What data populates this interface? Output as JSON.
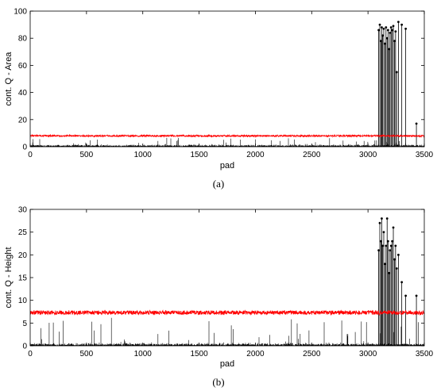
{
  "chart_data": [
    {
      "type": "scatter",
      "panel_label": "(a)",
      "xlabel": "pad",
      "ylabel": "cont. Q - Area",
      "xlim": [
        0,
        3500
      ],
      "ylim": [
        0,
        100
      ],
      "xticks": [
        0,
        500,
        1000,
        1500,
        2000,
        2500,
        3000,
        3500
      ],
      "yticks": [
        0,
        20,
        40,
        60,
        80,
        100
      ],
      "grid": false,
      "series": [
        {
          "kind": "stem",
          "color": "#000000",
          "baseline_level": 1.0,
          "baseline_noise": 1.2,
          "background_spikes_max": 6,
          "spikes": [
            [
              3095,
              86
            ],
            [
              3105,
              90
            ],
            [
              3115,
              78
            ],
            [
              3122,
              88
            ],
            [
              3130,
              82
            ],
            [
              3140,
              87
            ],
            [
              3150,
              76
            ],
            [
              3160,
              88
            ],
            [
              3170,
              80
            ],
            [
              3178,
              86
            ],
            [
              3188,
              72
            ],
            [
              3195,
              84
            ],
            [
              3205,
              88
            ],
            [
              3215,
              86
            ],
            [
              3225,
              89
            ],
            [
              3235,
              78
            ],
            [
              3245,
              85
            ],
            [
              3255,
              55
            ],
            [
              3270,
              92
            ],
            [
              3300,
              90
            ],
            [
              3335,
              87
            ],
            [
              3430,
              17
            ]
          ]
        },
        {
          "kind": "threshold",
          "color": "#ff0000",
          "level": 8.0,
          "noise": 0.6
        }
      ]
    },
    {
      "type": "scatter",
      "panel_label": "(b)",
      "xlabel": "pad",
      "ylabel": "cont. Q - Height",
      "xlim": [
        0,
        3500
      ],
      "ylim": [
        0,
        30
      ],
      "xticks": [
        0,
        500,
        1000,
        1500,
        2000,
        2500,
        3000,
        3500
      ],
      "yticks": [
        0,
        5,
        10,
        15,
        20,
        25,
        30
      ],
      "grid": false,
      "series": [
        {
          "kind": "stem",
          "color": "#000000",
          "baseline_level": 0.3,
          "baseline_noise": 0.5,
          "background_spikes_max": 6,
          "spikes": [
            [
              3095,
              21
            ],
            [
              3105,
              27
            ],
            [
              3115,
              23
            ],
            [
              3122,
              28
            ],
            [
              3130,
              22
            ],
            [
              3140,
              25
            ],
            [
              3150,
              18
            ],
            [
              3160,
              22
            ],
            [
              3170,
              28
            ],
            [
              3178,
              23
            ],
            [
              3188,
              16
            ],
            [
              3195,
              21
            ],
            [
              3205,
              22
            ],
            [
              3215,
              23
            ],
            [
              3225,
              26
            ],
            [
              3235,
              19
            ],
            [
              3245,
              22
            ],
            [
              3255,
              17
            ],
            [
              3270,
              20
            ],
            [
              3300,
              14
            ],
            [
              3335,
              11
            ],
            [
              3430,
              11
            ]
          ]
        },
        {
          "kind": "threshold",
          "color": "#ff0000",
          "level": 7.3,
          "noise": 0.45
        }
      ]
    }
  ]
}
